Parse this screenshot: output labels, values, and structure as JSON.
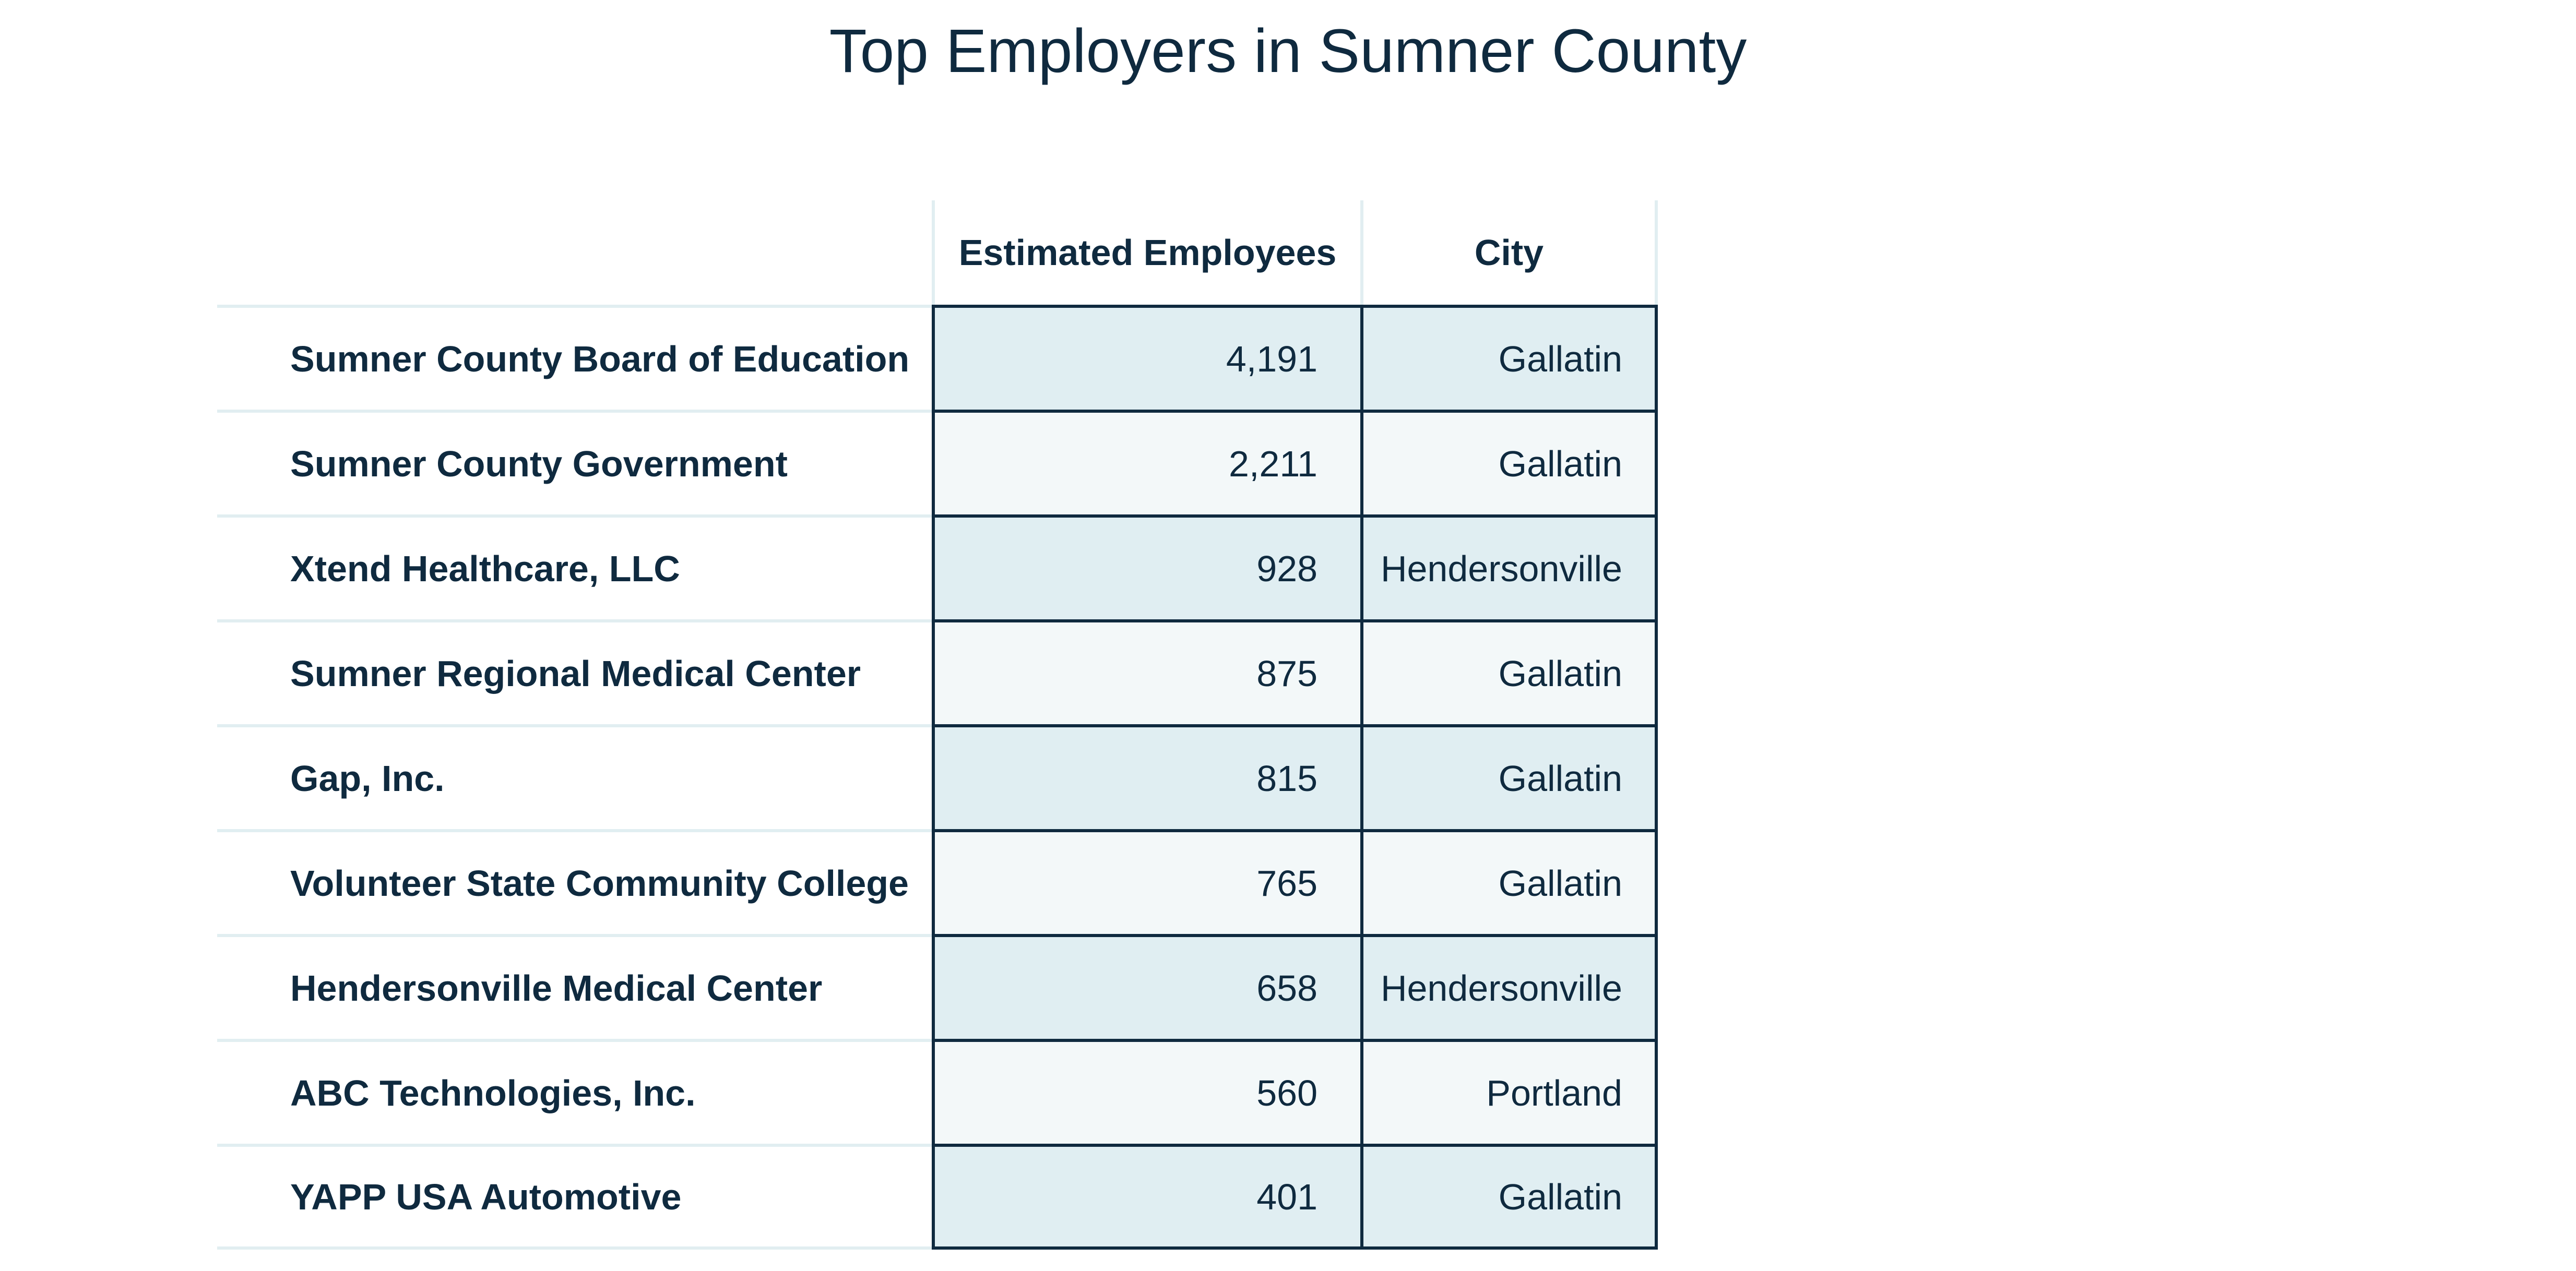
{
  "title": "Top Employers in Sumner County",
  "table": {
    "headers": {
      "name": "",
      "employees": "Estimated Employees",
      "city": "City"
    },
    "rows": [
      {
        "name": "Sumner County Board of Education",
        "employees": "4,191",
        "city": "Gallatin"
      },
      {
        "name": "Sumner County Government",
        "employees": "2,211",
        "city": "Gallatin"
      },
      {
        "name": "Xtend Healthcare, LLC",
        "employees": "928",
        "city": "Hendersonville"
      },
      {
        "name": "Sumner Regional Medical Center",
        "employees": "875",
        "city": "Gallatin"
      },
      {
        "name": "Gap, Inc.",
        "employees": "815",
        "city": "Gallatin"
      },
      {
        "name": "Volunteer State Community College",
        "employees": "765",
        "city": "Gallatin"
      },
      {
        "name": "Hendersonville Medical Center",
        "employees": "658",
        "city": "Hendersonville"
      },
      {
        "name": "ABC Technologies, Inc.",
        "employees": "560",
        "city": "Portland"
      },
      {
        "name": "YAPP USA Automotive",
        "employees": "401",
        "city": "Gallatin"
      }
    ]
  },
  "colors": {
    "text": "#0f2a3f",
    "row_dark": "#e0eef2",
    "row_light": "#f3f8f9",
    "divider": "#e1eef1"
  }
}
